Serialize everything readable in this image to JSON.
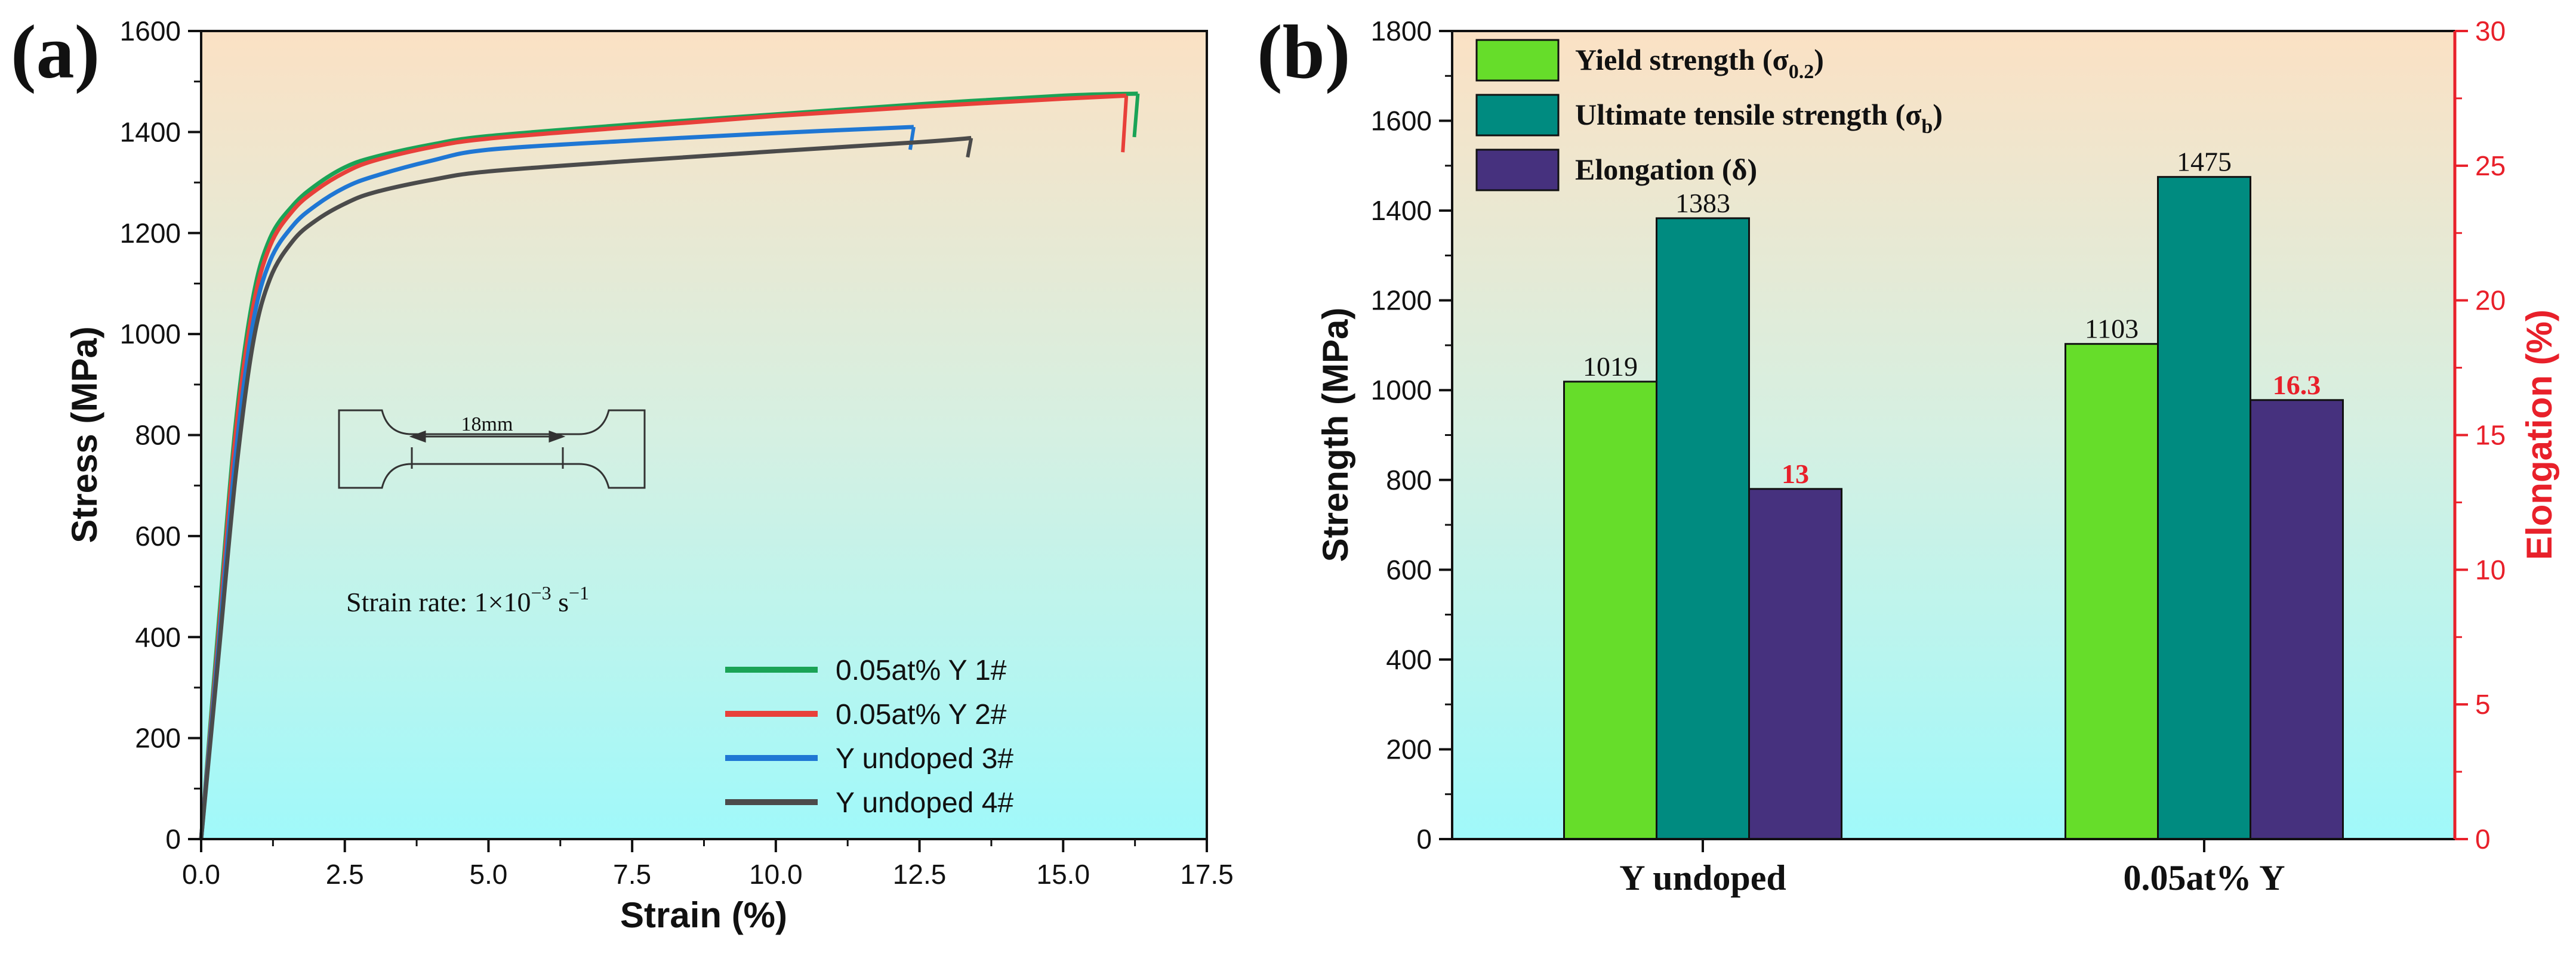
{
  "panel_a_label": "(a)",
  "panel_b_label": "(b)",
  "chart_data": [
    {
      "type": "line",
      "title": "",
      "xlabel": "Strain (%)",
      "ylabel": "Stress (MPa)",
      "xlim": [
        0,
        17.5
      ],
      "ylim": [
        0,
        1600
      ],
      "xticks": [
        "0.0",
        "2.5",
        "5.0",
        "7.5",
        "10.0",
        "12.5",
        "15.0",
        "17.5"
      ],
      "yticks": [
        "0",
        "200",
        "400",
        "600",
        "800",
        "1000",
        "1200",
        "1400",
        "1600"
      ],
      "annotations": {
        "gauge_length": "18mm",
        "strain_rate_prefix": "Strain rate: 1×10",
        "strain_rate_exp1": "−3",
        "strain_rate_unit": " s",
        "strain_rate_exp2": "−1"
      },
      "legend_position": "center-right",
      "series": [
        {
          "name": "0.05at% Y 1#",
          "color": "#1aa356",
          "x": [
            0,
            0.3,
            0.6,
            0.9,
            1.2,
            1.6,
            2.0,
            2.5,
            3.0,
            4.0,
            5.0,
            7.5,
            10.0,
            12.5,
            15.0,
            16.3
          ],
          "y": [
            0,
            420,
            820,
            1070,
            1190,
            1255,
            1295,
            1330,
            1350,
            1375,
            1392,
            1415,
            1435,
            1455,
            1472,
            1476
          ],
          "fracture_x": 16.3,
          "fracture_y_low": 1390
        },
        {
          "name": "0.05at% Y 2#",
          "color": "#e8403a",
          "x": [
            0,
            0.3,
            0.6,
            0.9,
            1.2,
            1.6,
            2.0,
            2.5,
            3.0,
            4.0,
            5.0,
            7.5,
            10.0,
            12.5,
            15.0,
            16.1
          ],
          "y": [
            0,
            400,
            800,
            1050,
            1175,
            1245,
            1285,
            1320,
            1343,
            1370,
            1387,
            1410,
            1432,
            1450,
            1466,
            1472
          ],
          "fracture_x": 16.1,
          "fracture_y_low": 1360
        },
        {
          "name": "Y undoped 3#",
          "color": "#1f77d4",
          "x": [
            0,
            0.3,
            0.6,
            0.9,
            1.2,
            1.6,
            2.0,
            2.5,
            3.0,
            4.0,
            5.0,
            7.5,
            10.0,
            12.4
          ],
          "y": [
            0,
            380,
            760,
            1020,
            1145,
            1215,
            1255,
            1290,
            1312,
            1343,
            1365,
            1383,
            1398,
            1410
          ],
          "fracture_x": 12.4,
          "fracture_y_low": 1365
        },
        {
          "name": "Y undoped 4#",
          "color": "#4b4b4b",
          "x": [
            0,
            0.3,
            0.6,
            0.9,
            1.2,
            1.6,
            2.0,
            2.5,
            3.0,
            4.0,
            5.0,
            7.5,
            10.0,
            12.5,
            13.4
          ],
          "y": [
            0,
            360,
            720,
            980,
            1110,
            1185,
            1225,
            1258,
            1280,
            1305,
            1322,
            1343,
            1362,
            1380,
            1388
          ],
          "fracture_x": 13.4,
          "fracture_y_low": 1350
        }
      ]
    },
    {
      "type": "bar",
      "title": "",
      "xlabel": "",
      "ylabel": "Strength (MPa)",
      "y2label": "Elongation (%)",
      "categories": [
        "Y undoped",
        "0.05at% Y"
      ],
      "ylim": [
        0,
        1800
      ],
      "y2lim": [
        0,
        30
      ],
      "yticks": [
        "0",
        "200",
        "400",
        "600",
        "800",
        "1000",
        "1200",
        "1400",
        "1600",
        "1800"
      ],
      "y2ticks": [
        "0",
        "5",
        "10",
        "15",
        "20",
        "25",
        "30"
      ],
      "legend_position": "top-left",
      "series": [
        {
          "name": "Yield strength",
          "symbol": "σ",
          "subscript": "0.2",
          "color": "#66dd2a",
          "axis": "left",
          "values": [
            1019,
            1103
          ],
          "labels": [
            "1019",
            "1103"
          ],
          "label_color": "#111111"
        },
        {
          "name": "Ultimate tensile strength",
          "symbol": "σ",
          "subscript": "b",
          "color": "#008b80",
          "axis": "left",
          "values": [
            1383,
            1475
          ],
          "labels": [
            "1383",
            "1475"
          ],
          "label_color": "#111111"
        },
        {
          "name": "Elongation",
          "symbol": "δ",
          "subscript": "",
          "color": "#46317e",
          "axis": "right",
          "values": [
            13,
            16.3
          ],
          "labels": [
            "13",
            "16.3"
          ],
          "label_color": "#e8202a"
        }
      ]
    }
  ]
}
